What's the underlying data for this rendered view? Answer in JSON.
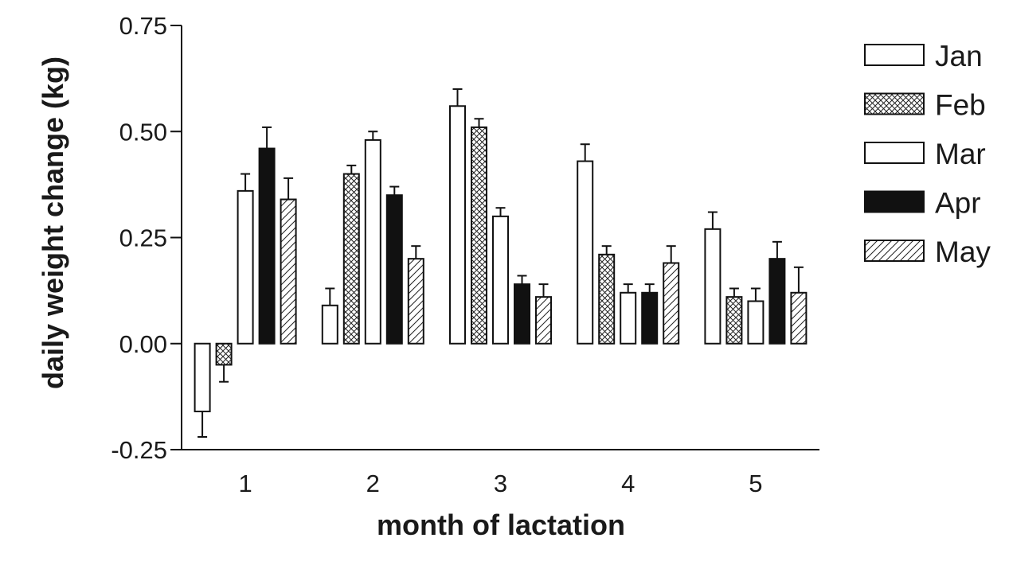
{
  "chart_data": {
    "type": "bar",
    "title": "",
    "xlabel": "month of lactation",
    "ylabel": "daily weight change (kg)",
    "ylim": [
      -0.25,
      0.75
    ],
    "yticks": [
      "0.75",
      "0.50",
      "0.25",
      "0.00",
      "-0.25"
    ],
    "categories": [
      "1",
      "2",
      "3",
      "4",
      "5"
    ],
    "series": [
      {
        "name": "Jan",
        "pattern": "open",
        "values": [
          -0.16,
          0.09,
          0.56,
          0.43,
          0.27
        ],
        "errors": [
          0.06,
          0.04,
          0.04,
          0.04,
          0.04
        ]
      },
      {
        "name": "Feb",
        "pattern": "crosshatch",
        "values": [
          -0.05,
          0.4,
          0.51,
          0.21,
          0.11
        ],
        "errors": [
          0.04,
          0.02,
          0.02,
          0.02,
          0.02
        ]
      },
      {
        "name": "Mar",
        "pattern": "open",
        "values": [
          0.36,
          0.48,
          0.3,
          0.12,
          0.1
        ],
        "errors": [
          0.04,
          0.02,
          0.02,
          0.02,
          0.03
        ]
      },
      {
        "name": "Apr",
        "pattern": "solid",
        "values": [
          0.46,
          0.35,
          0.14,
          0.12,
          0.2
        ],
        "errors": [
          0.05,
          0.02,
          0.02,
          0.02,
          0.04
        ]
      },
      {
        "name": "May",
        "pattern": "diagonal",
        "values": [
          0.34,
          0.2,
          0.11,
          0.19,
          0.12
        ],
        "errors": [
          0.05,
          0.03,
          0.03,
          0.04,
          0.06
        ]
      }
    ],
    "grid": false,
    "legend_position": "right"
  }
}
